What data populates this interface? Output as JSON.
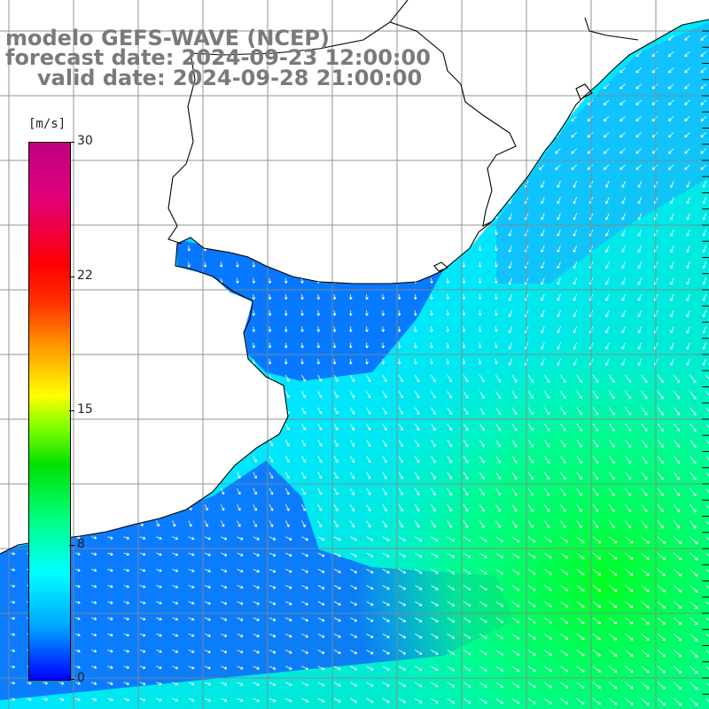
{
  "title": {
    "line1": "modelo GEFS-WAVE (NCEP)",
    "line2": "forecast date: 2024-09-23 12:00:00",
    "line3": "valid date: 2024-09-28 21:00:00"
  },
  "colorbar": {
    "unit": "[m/s]",
    "min": 0,
    "max": 30,
    "ticks": [
      {
        "label": "30",
        "value": 30
      },
      {
        "label": "22",
        "value": 22.5
      },
      {
        "label": "15",
        "value": 15
      },
      {
        "label": "8",
        "value": 7.5
      },
      {
        "label": "0",
        "value": 0
      }
    ]
  },
  "colors": {
    "land": "#ffffff",
    "grid": "#888888",
    "coast": "#000000",
    "arrow": "#ffffff",
    "label": "#7a7a7a"
  }
}
